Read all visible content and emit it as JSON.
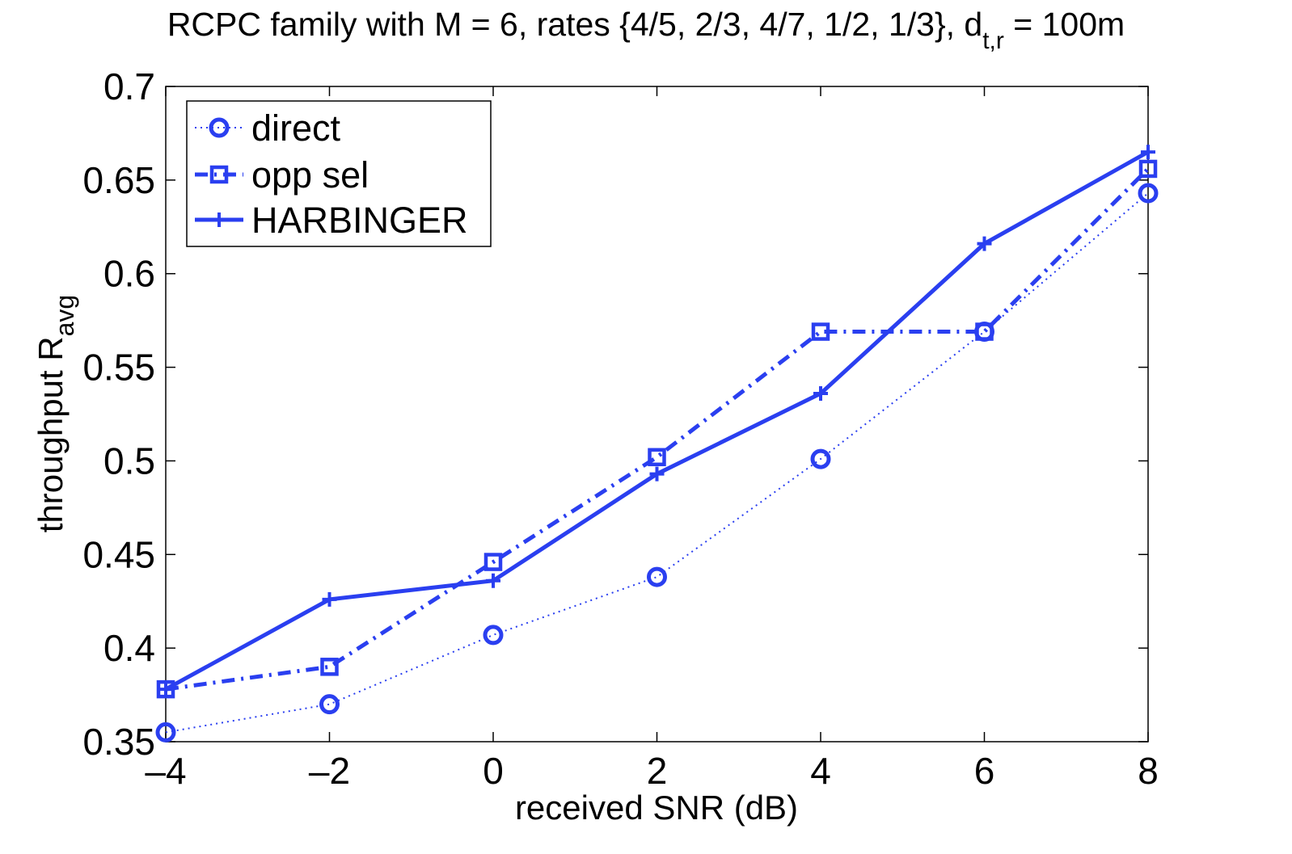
{
  "chart_data": {
    "type": "line",
    "title": "RCPC family with M = 6, rates {4/5, 2/3, 4/7, 1/2, 1/3}, d",
    "title_subscript": "t,r",
    "title_suffix": " = 100m",
    "xlabel": "received SNR (dB)",
    "ylabel": "throughput R",
    "ylabel_subscript": "avg",
    "xlim": [
      -4,
      8
    ],
    "ylim": [
      0.35,
      0.7
    ],
    "xticks": [
      -4,
      -2,
      0,
      2,
      4,
      6,
      8
    ],
    "xtick_labels": [
      "–4",
      "–2",
      "0",
      "2",
      "4",
      "6",
      "8"
    ],
    "yticks": [
      0.35,
      0.4,
      0.45,
      0.5,
      0.55,
      0.6,
      0.65,
      0.7
    ],
    "ytick_labels": [
      "0.35",
      "0.4",
      "0.45",
      "0.5",
      "0.55",
      "0.6",
      "0.65",
      "0.7"
    ],
    "grid": false,
    "legend_position": "top-left",
    "x": [
      -4,
      -2,
      0,
      2,
      4,
      6,
      8
    ],
    "series": [
      {
        "name": "direct",
        "values": [
          0.355,
          0.37,
          0.407,
          0.438,
          0.501,
          0.569,
          0.643
        ],
        "marker": "circle",
        "line_style": "dotted",
        "color": "#2a3ff0"
      },
      {
        "name": "opp sel",
        "values": [
          0.378,
          0.39,
          0.446,
          0.502,
          0.569,
          0.569,
          0.656
        ],
        "marker": "square",
        "line_style": "dash-dot",
        "color": "#2a3ff0"
      },
      {
        "name": "HARBINGER",
        "values": [
          0.378,
          0.426,
          0.436,
          0.493,
          0.536,
          0.616,
          0.665
        ],
        "marker": "plus",
        "line_style": "solid",
        "color": "#2a3ff0"
      }
    ]
  }
}
